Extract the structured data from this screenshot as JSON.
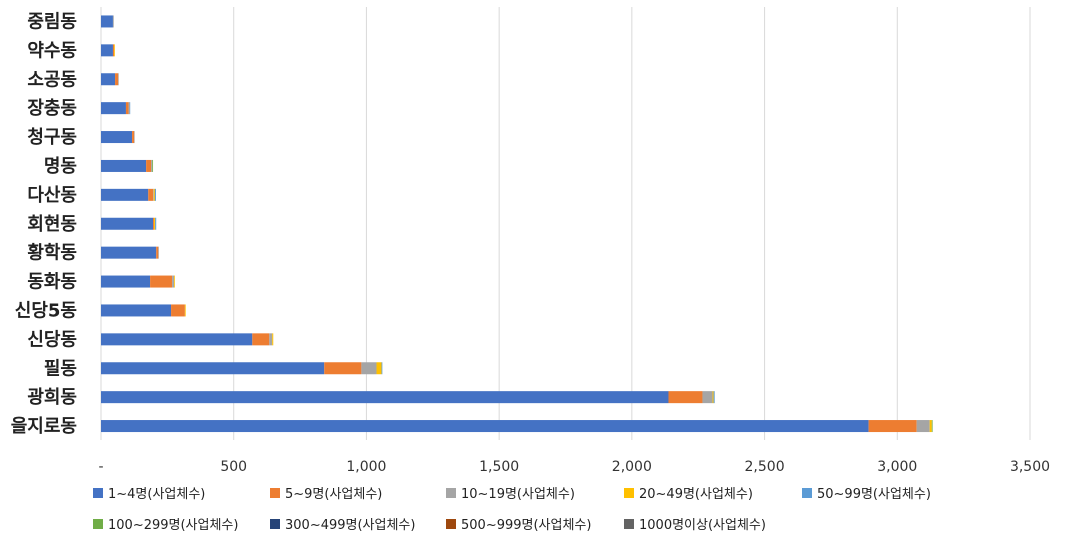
{
  "chart_data": {
    "type": "bar",
    "orientation": "horizontal",
    "stacked": true,
    "title": "",
    "xlabel": "",
    "ylabel": "",
    "xlim": [
      0,
      3500
    ],
    "xticks": [
      0,
      500,
      1000,
      1500,
      2000,
      2500,
      3000,
      3500
    ],
    "xtick_labels": [
      "-",
      "500",
      "1,000",
      "1,500",
      "2,000",
      "2,500",
      "3,000",
      "3,500"
    ],
    "grid": true,
    "legend_position": "bottom",
    "categories": [
      "중림동",
      "약수동",
      "소공동",
      "장충동",
      "청구동",
      "명동",
      "다산동",
      "회현동",
      "황학동",
      "동화동",
      "신당5동",
      "신당동",
      "필동",
      "광희동",
      "을지로동"
    ],
    "series": [
      {
        "name": "1~4명(사업체수)",
        "color": "#4472C4",
        "values": [
          45,
          45,
          53,
          94,
          117,
          170,
          178,
          196,
          208,
          185,
          264,
          570,
          841,
          2138,
          2892
        ]
      },
      {
        "name": "5~9명(사업체수)",
        "color": "#ED7D31",
        "values": [
          0,
          4,
          12,
          10,
          8,
          19,
          19,
          4,
          8,
          83,
          52,
          64,
          140,
          128,
          181
        ]
      },
      {
        "name": "10~19명(사업체수)",
        "color": "#A5A5A5",
        "values": [
          3,
          0,
          2,
          4,
          2,
          4,
          2,
          0,
          2,
          7,
          0,
          11,
          57,
          38,
          49
        ]
      },
      {
        "name": "20~49명(사업체수)",
        "color": "#FFC000",
        "values": [
          0,
          3,
          0,
          0,
          0,
          0,
          4,
          4,
          0,
          3,
          3,
          4,
          19,
          4,
          8
        ]
      },
      {
        "name": "50~99명(사업체수)",
        "color": "#5B9BD5",
        "values": [
          0,
          0,
          0,
          2,
          0,
          0,
          4,
          4,
          0,
          0,
          0,
          0,
          3,
          4,
          0
        ]
      },
      {
        "name": "100~299명(사업체수)",
        "color": "#70AD47",
        "values": [
          0,
          0,
          0,
          0,
          0,
          3,
          0,
          0,
          0,
          0,
          0,
          0,
          0,
          0,
          3
        ]
      },
      {
        "name": "300~499명(사업체수)",
        "color": "#264478",
        "values": [
          0,
          0,
          0,
          0,
          0,
          0,
          0,
          0,
          0,
          0,
          0,
          0,
          0,
          0,
          0
        ]
      },
      {
        "name": "500~999명(사업체수)",
        "color": "#9E480E",
        "values": [
          0,
          0,
          0,
          0,
          0,
          0,
          0,
          0,
          0,
          0,
          0,
          0,
          0,
          0,
          0
        ]
      },
      {
        "name": "1000명이상(사업체수)",
        "color": "#636363",
        "values": [
          0,
          0,
          0,
          0,
          0,
          0,
          0,
          0,
          0,
          0,
          0,
          0,
          0,
          0,
          0
        ]
      }
    ]
  }
}
